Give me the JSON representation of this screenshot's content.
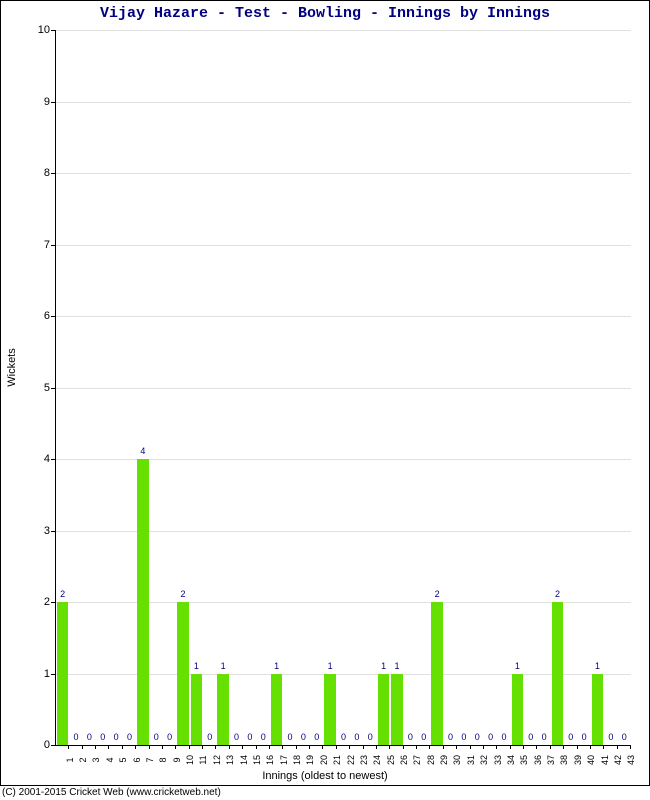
{
  "chart": {
    "type": "bar",
    "title": "Vijay Hazare - Test - Bowling - Innings by Innings",
    "title_color": "#000080",
    "title_fontsize": 15,
    "ylabel": "Wickets",
    "xlabel": "Innings (oldest to newest)",
    "label_fontsize": 11,
    "ylim": [
      0,
      10
    ],
    "ytick_step": 1,
    "background_color": "#ffffff",
    "grid_color": "#e0e0e0",
    "bar_color": "#66e000",
    "bar_label_color": "#000080",
    "bar_label_fontsize": 9,
    "tick_fontsize": 11,
    "categories": [
      "1",
      "2",
      "3",
      "4",
      "5",
      "6",
      "7",
      "8",
      "9",
      "10",
      "11",
      "12",
      "13",
      "14",
      "15",
      "16",
      "17",
      "18",
      "19",
      "20",
      "21",
      "22",
      "23",
      "24",
      "25",
      "26",
      "27",
      "28",
      "29",
      "30",
      "31",
      "32",
      "33",
      "34",
      "35",
      "36",
      "37",
      "38",
      "39",
      "40",
      "41",
      "42",
      "43"
    ],
    "values": [
      2,
      0,
      0,
      0,
      0,
      0,
      4,
      0,
      0,
      2,
      1,
      0,
      1,
      0,
      0,
      0,
      1,
      0,
      0,
      0,
      1,
      0,
      0,
      0,
      1,
      1,
      0,
      0,
      2,
      0,
      0,
      0,
      0,
      0,
      1,
      0,
      0,
      2,
      0,
      0,
      1,
      0,
      0
    ]
  },
  "copyright": "(C) 2001-2015 Cricket Web (www.cricketweb.net)"
}
